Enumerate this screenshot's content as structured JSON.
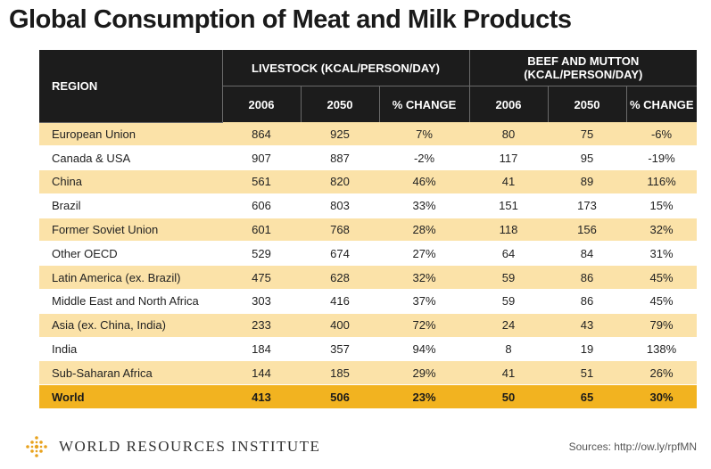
{
  "title": "Global Consumption of Meat and Milk Products",
  "colors": {
    "header": "#1c1c1c",
    "stripe": "#fbe2a8",
    "highlight": "#f2b320"
  },
  "footer": {
    "organization": "WORLD RESOURCES INSTITUTE",
    "logo_icon": "wri-diamond-logo",
    "source": "Sources: http://ow.ly/rpfMN"
  },
  "chart_data": {
    "type": "table",
    "headers": {
      "region": "REGION",
      "group1": "LIVESTOCK (KCAL/PERSON/DAY)",
      "group2": "BEEF AND MUTTON (KCAL/PERSON/DAY)",
      "subcolumns": [
        "2006",
        "2050",
        "% CHANGE",
        "2006",
        "2050",
        "% CHANGE"
      ]
    },
    "rows": [
      {
        "region": "European Union",
        "values": [
          "864",
          "925",
          "7%",
          "80",
          "75",
          "-6%"
        ]
      },
      {
        "region": "Canada & USA",
        "values": [
          "907",
          "887",
          "-2%",
          "117",
          "95",
          "-19%"
        ]
      },
      {
        "region": "China",
        "values": [
          "561",
          "820",
          "46%",
          "41",
          "89",
          "116%"
        ]
      },
      {
        "region": "Brazil",
        "values": [
          "606",
          "803",
          "33%",
          "151",
          "173",
          "15%"
        ]
      },
      {
        "region": "Former Soviet Union",
        "values": [
          "601",
          "768",
          "28%",
          "118",
          "156",
          "32%"
        ]
      },
      {
        "region": "Other OECD",
        "values": [
          "529",
          "674",
          "27%",
          "64",
          "84",
          "31%"
        ]
      },
      {
        "region": "Latin America (ex. Brazil)",
        "values": [
          "475",
          "628",
          "32%",
          "59",
          "86",
          "45%"
        ]
      },
      {
        "region": "Middle East and North Africa",
        "values": [
          "303",
          "416",
          "37%",
          "59",
          "86",
          "45%"
        ]
      },
      {
        "region": "Asia (ex. China, India)",
        "values": [
          "233",
          "400",
          "72%",
          "24",
          "43",
          "79%"
        ]
      },
      {
        "region": "India",
        "values": [
          "184",
          "357",
          "94%",
          "8",
          "19",
          "138%"
        ]
      },
      {
        "region": "Sub-Saharan Africa",
        "values": [
          "144",
          "185",
          "29%",
          "41",
          "51",
          "26%"
        ]
      }
    ],
    "total": {
      "region": "World",
      "values": [
        "413",
        "506",
        "23%",
        "50",
        "65",
        "30%"
      ]
    }
  }
}
